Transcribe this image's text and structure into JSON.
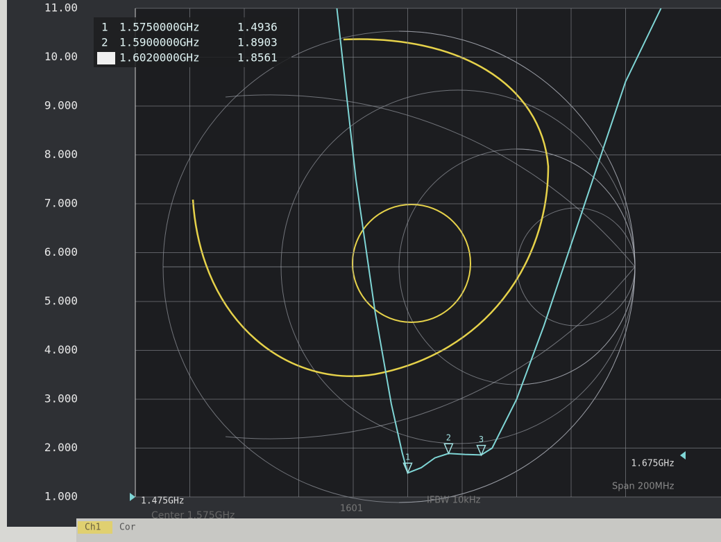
{
  "chart_data": {
    "type": "line",
    "xlim": [
      1.475,
      1.675
    ],
    "xticks": [
      {
        "value": 1.475,
        "label": "1.475GHz"
      },
      {
        "value": 1.675,
        "label": "1.675GHz"
      }
    ],
    "ylim": [
      1,
      11
    ],
    "yticks": [
      {
        "value": 1,
        "label": "1.000"
      },
      {
        "value": 2,
        "label": "2.000"
      },
      {
        "value": 3,
        "label": "3.000"
      },
      {
        "value": 4,
        "label": "4.000"
      },
      {
        "value": 5,
        "label": "5.000"
      },
      {
        "value": 6,
        "label": "6.000"
      },
      {
        "value": 7,
        "label": "7.000"
      },
      {
        "value": 8,
        "label": "8.000"
      },
      {
        "value": 9,
        "label": "9.000"
      },
      {
        "value": 10,
        "label": "10.00"
      },
      {
        "value": 11,
        "label": "11.00"
      }
    ],
    "grid": true,
    "series": [
      {
        "color": "#7fd6d6",
        "x": [
          1.549,
          1.556,
          1.563,
          1.569,
          1.573,
          1.575,
          1.58,
          1.585,
          1.59,
          1.596,
          1.602,
          1.606,
          1.615,
          1.625,
          1.64,
          1.655,
          1.668
        ],
        "values": [
          11,
          7.5,
          4.8,
          2.9,
          1.9,
          1.49,
          1.6,
          1.8,
          1.89,
          1.87,
          1.86,
          2.0,
          3.0,
          4.5,
          7.0,
          9.5,
          11
        ]
      }
    ],
    "markers": [
      {
        "id": "1",
        "x": 1.575,
        "x_label": "1.5750000GHz",
        "value": 1.4936
      },
      {
        "id": "2",
        "x": 1.59,
        "x_label": "1.5900000GHz",
        "value": 1.8903
      },
      {
        "id": "3",
        "x": 1.602,
        "x_label": "1.6020000GHz",
        "value": 1.8561
      }
    ],
    "footer": {
      "channel": "Ch1",
      "correction": "Cor",
      "center": "Center 1.575GHz",
      "points": "1601",
      "ifbw": "IFBW 10kHz",
      "span": "Span 200MHz"
    }
  }
}
